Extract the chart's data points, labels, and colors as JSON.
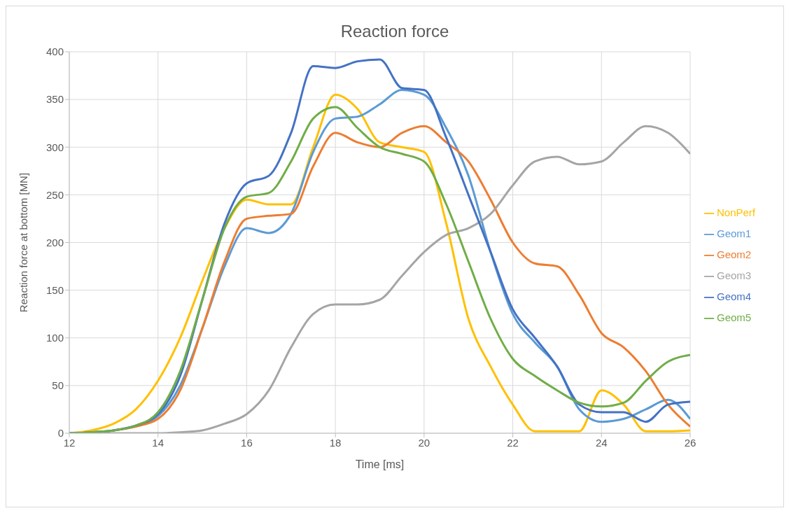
{
  "chart_data": {
    "type": "line",
    "title": "Reaction force",
    "xlabel": "Time [ms]",
    "ylabel": "Reaction force at bottom  [MN]",
    "x": [
      12,
      12.5,
      13,
      13.5,
      14,
      14.5,
      15,
      15.5,
      16,
      16.5,
      17,
      17.5,
      18,
      18.5,
      19,
      19.5,
      20,
      20.5,
      21,
      21.5,
      22,
      22.5,
      23,
      23.5,
      24,
      24.5,
      25,
      25.5,
      26
    ],
    "series": [
      {
        "name": "NonPerf",
        "color": "#ffc000",
        "values": [
          0,
          3,
          10,
          25,
          55,
          100,
          160,
          215,
          245,
          240,
          240,
          300,
          355,
          340,
          305,
          300,
          295,
          220,
          120,
          70,
          30,
          2,
          2,
          2,
          45,
          30,
          2,
          2,
          3
        ]
      },
      {
        "name": "Geom1",
        "color": "#5b9bd5",
        "values": [
          0,
          1,
          3,
          8,
          18,
          50,
          110,
          175,
          215,
          210,
          230,
          295,
          330,
          332,
          345,
          360,
          355,
          320,
          270,
          190,
          125,
          95,
          70,
          25,
          12,
          15,
          25,
          35,
          15
        ]
      },
      {
        "name": "Geom2",
        "color": "#ed7d31",
        "values": [
          null,
          null,
          3,
          7,
          15,
          45,
          110,
          180,
          225,
          228,
          230,
          280,
          315,
          305,
          300,
          315,
          322,
          305,
          285,
          245,
          200,
          178,
          175,
          145,
          105,
          90,
          65,
          30,
          7
        ]
      },
      {
        "name": "Geom3",
        "color": "#a5a5a5",
        "values": [
          0,
          0,
          0,
          0,
          0,
          1,
          3,
          10,
          20,
          45,
          90,
          125,
          135,
          135,
          140,
          165,
          190,
          208,
          215,
          230,
          260,
          285,
          290,
          282,
          285,
          305,
          322,
          315,
          293
        ]
      },
      {
        "name": "Geom4",
        "color": "#4472c4",
        "values": [
          0,
          1,
          3,
          8,
          20,
          60,
          140,
          220,
          262,
          270,
          315,
          385,
          383,
          390,
          392,
          362,
          360,
          310,
          250,
          190,
          130,
          100,
          70,
          30,
          22,
          22,
          12,
          30,
          33
        ]
      },
      {
        "name": "Geom5",
        "color": "#70ad47",
        "values": [
          0,
          1,
          3,
          8,
          22,
          65,
          140,
          215,
          248,
          252,
          285,
          330,
          342,
          320,
          300,
          293,
          285,
          240,
          180,
          120,
          78,
          60,
          45,
          32,
          28,
          32,
          55,
          75,
          82
        ]
      }
    ],
    "xlim": [
      12,
      26
    ],
    "xticks": [
      12,
      14,
      16,
      18,
      20,
      22,
      24,
      26
    ],
    "ylim": [
      0,
      400
    ],
    "yticks": [
      0,
      50,
      100,
      150,
      200,
      250,
      300,
      350,
      400
    ],
    "grid": true,
    "legend": "right",
    "marker": "none",
    "line_style": "solid"
  }
}
